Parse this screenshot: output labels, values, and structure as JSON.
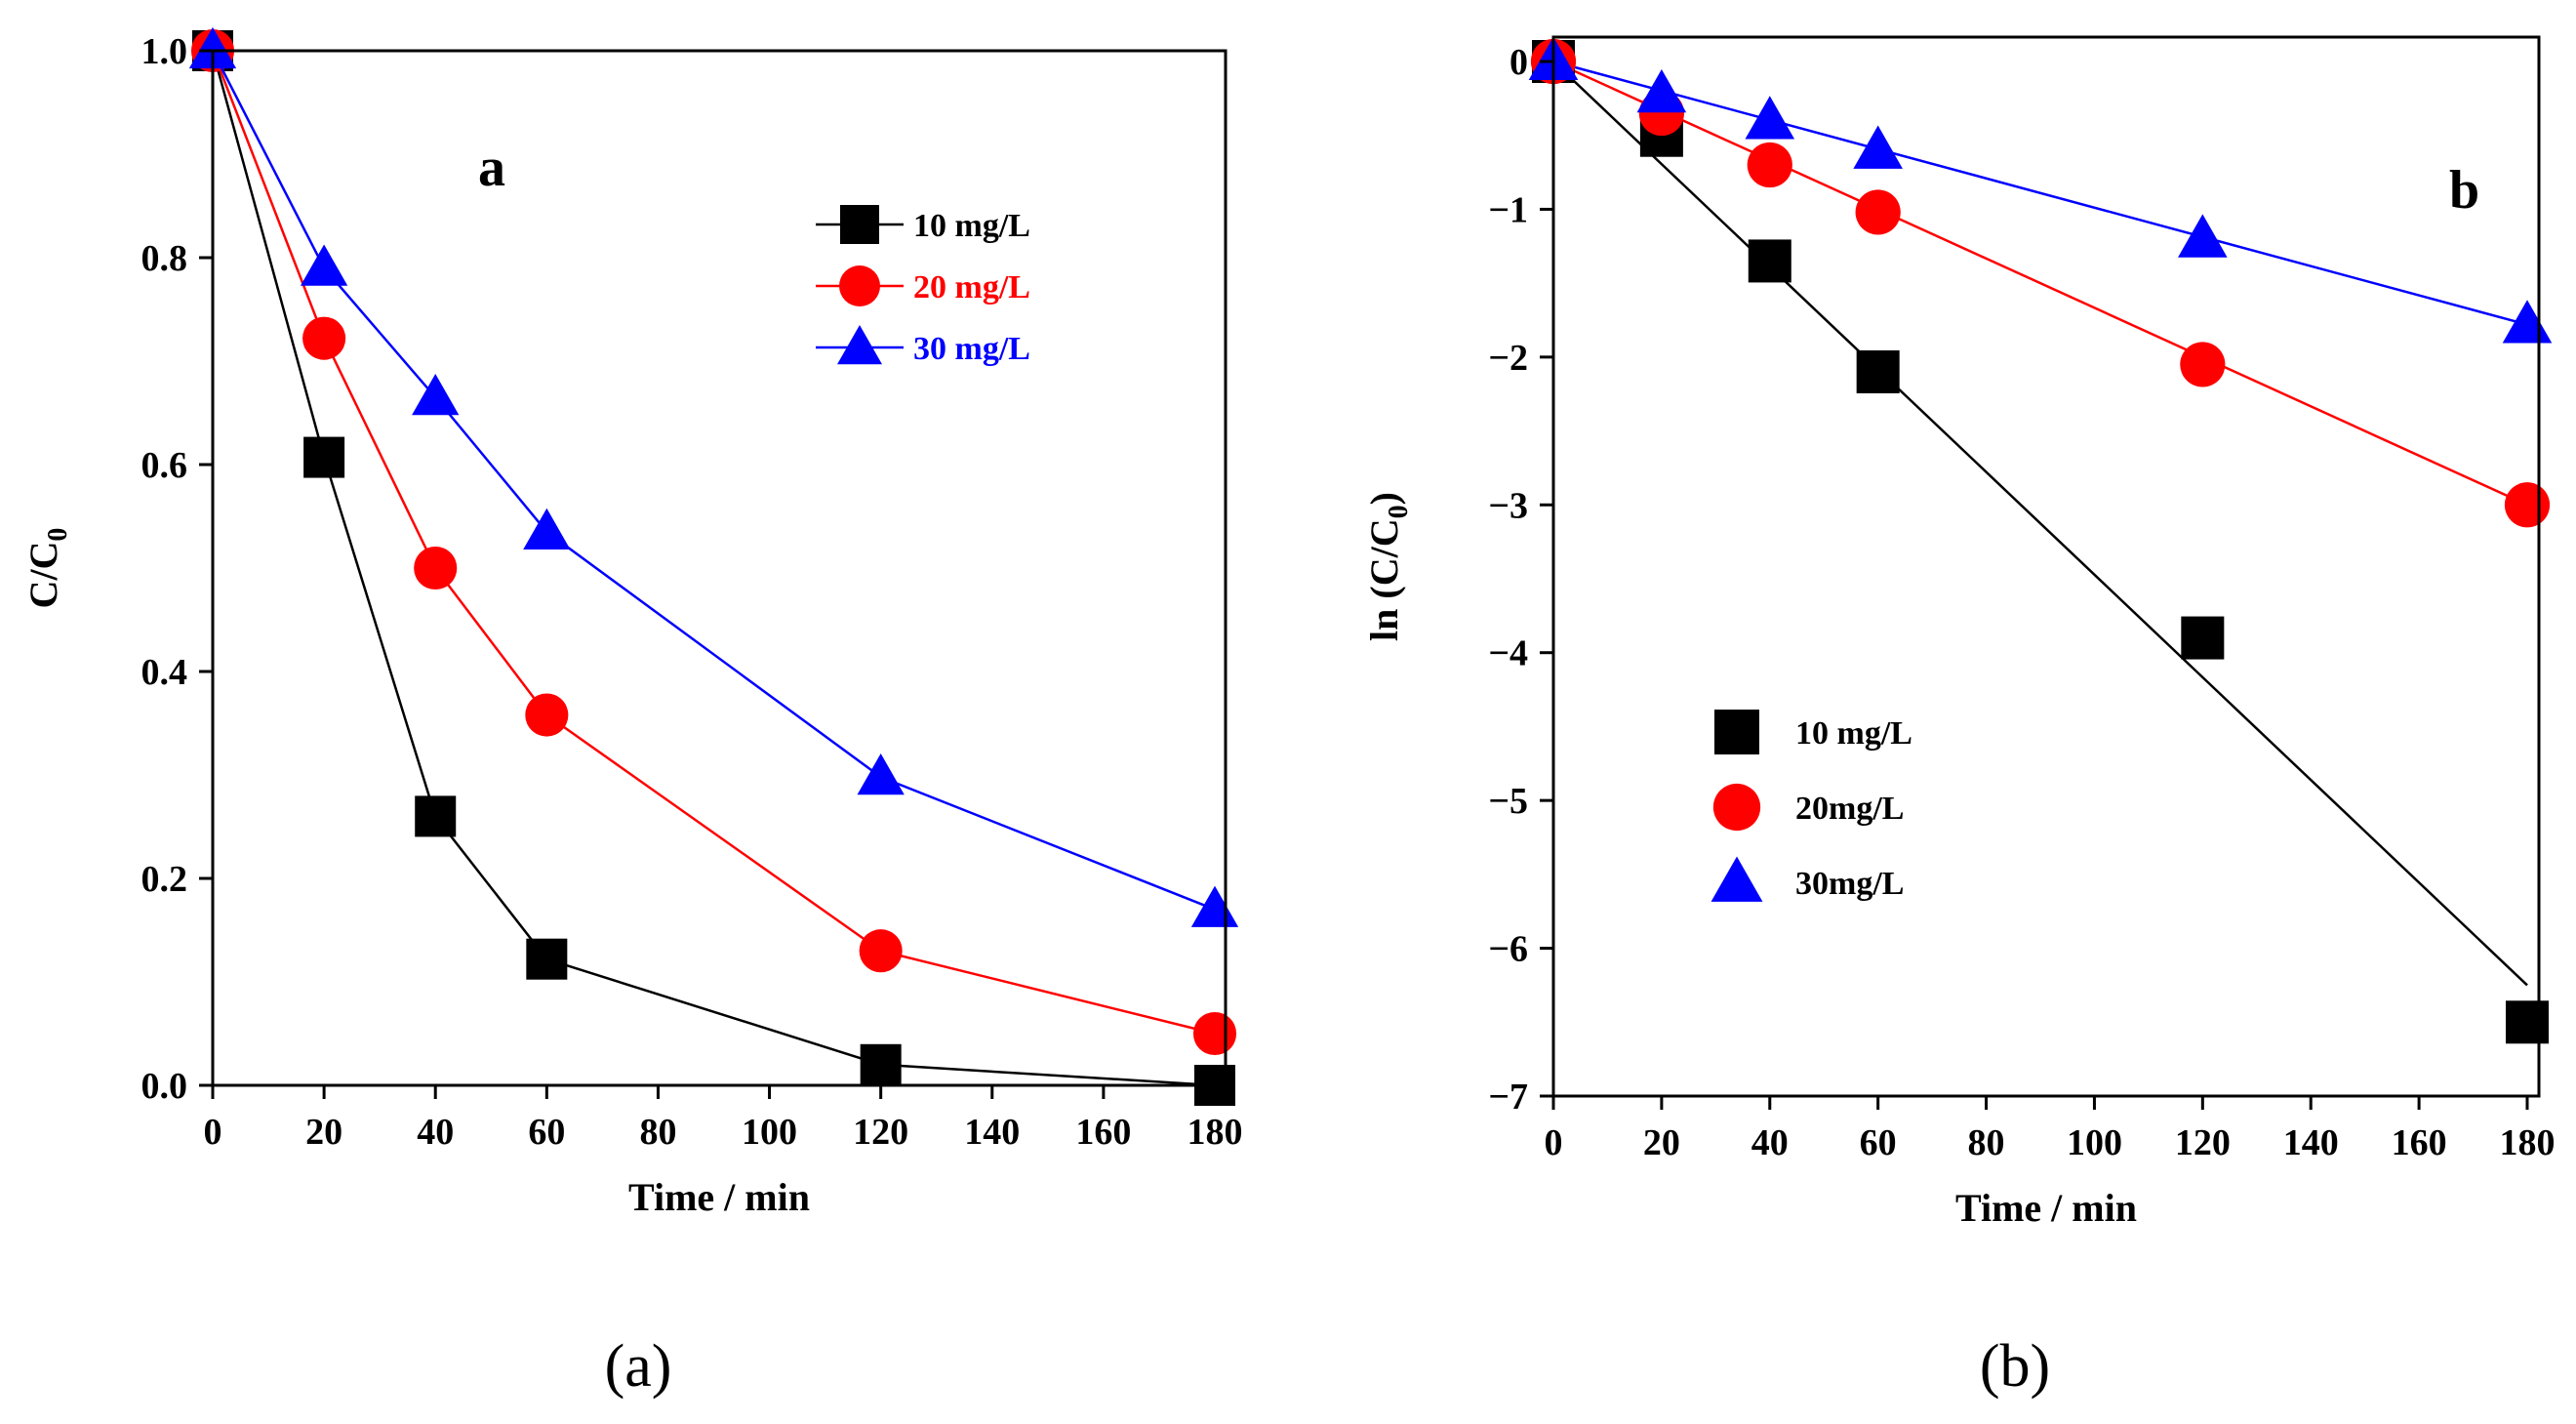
{
  "chart_data": [
    {
      "type": "line",
      "panel_letter": "a",
      "caption": "(a)",
      "title": "",
      "xlabel": "Time / min",
      "ylabel": "C/C",
      "ylabel_sub": "0",
      "xlim": [
        0,
        180
      ],
      "ylim": [
        0,
        1.0
      ],
      "xticks": [
        0,
        20,
        40,
        60,
        80,
        100,
        120,
        140,
        160,
        180
      ],
      "yticks": [
        0.0,
        0.2,
        0.4,
        0.6,
        0.8,
        1.0
      ],
      "ytick_labels": [
        "0.0",
        "0.2",
        "0.4",
        "0.6",
        "0.8",
        "1.0"
      ],
      "legend_position": "top-right",
      "series": [
        {
          "name": "10 mg/L",
          "marker": "square",
          "color": "#000000",
          "x": [
            0,
            20,
            40,
            60,
            120,
            180
          ],
          "y": [
            1.0,
            0.607,
            0.26,
            0.122,
            0.02,
            0.0
          ]
        },
        {
          "name": "20 mg/L",
          "marker": "circle",
          "color": "#ff0000",
          "x": [
            0,
            20,
            40,
            60,
            120,
            180
          ],
          "y": [
            1.0,
            0.722,
            0.5,
            0.358,
            0.13,
            0.05
          ]
        },
        {
          "name": "30 mg/L",
          "marker": "triangle",
          "color": "#0000ff",
          "x": [
            0,
            20,
            40,
            60,
            120,
            180
          ],
          "y": [
            1.0,
            0.79,
            0.665,
            0.535,
            0.298,
            0.17
          ]
        }
      ]
    },
    {
      "type": "scatter",
      "panel_letter": "b",
      "caption": "(b)",
      "title": "",
      "xlabel": "Time / min",
      "ylabel": "ln (C/C",
      "ylabel_sub": "0",
      "ylabel_end": ")",
      "xlim": [
        0,
        180
      ],
      "ylim": [
        -7,
        0
      ],
      "xticks": [
        0,
        20,
        40,
        60,
        80,
        100,
        120,
        140,
        160,
        180
      ],
      "yticks": [
        0,
        -1,
        -2,
        -3,
        -4,
        -5,
        -6,
        -7
      ],
      "ytick_labels": [
        "0",
        "−1",
        "−2",
        "−3",
        "−4",
        "−5",
        "−6",
        "−7"
      ],
      "legend_position": "bottom-left",
      "series": [
        {
          "name": "10 mg/L",
          "marker": "square",
          "color": "#000000",
          "x": [
            0,
            20,
            40,
            60,
            120,
            180
          ],
          "y": [
            0,
            -0.5,
            -1.35,
            -2.1,
            -3.9,
            -6.5
          ],
          "fit": {
            "x": [
              0,
              180
            ],
            "y": [
              0,
              -6.25
            ]
          }
        },
        {
          "name": "20mg/L",
          "marker": "circle",
          "color": "#ff0000",
          "x": [
            0,
            20,
            40,
            60,
            120,
            180
          ],
          "y": [
            0,
            -0.35,
            -0.7,
            -1.02,
            -2.05,
            -3.0
          ],
          "fit": {
            "x": [
              0,
              180
            ],
            "y": [
              0,
              -3.0
            ]
          }
        },
        {
          "name": "30mg/L",
          "marker": "triangle",
          "color": "#0000ff",
          "x": [
            0,
            20,
            40,
            60,
            120,
            180
          ],
          "y": [
            0,
            -0.22,
            -0.4,
            -0.6,
            -1.2,
            -1.78
          ],
          "fit": {
            "x": [
              0,
              180
            ],
            "y": [
              0,
              -1.78
            ]
          }
        }
      ]
    }
  ]
}
